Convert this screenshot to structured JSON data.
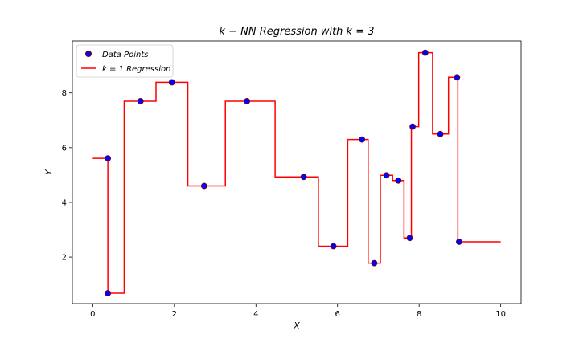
{
  "chart_data": {
    "type": "line",
    "title": "k − NN Regression with k = 3",
    "xlabel": "X",
    "ylabel": "Y",
    "xlim": [
      -0.5,
      10.5
    ],
    "ylim": [
      0.3,
      9.9
    ],
    "xticks": [
      0,
      2,
      4,
      6,
      8,
      10
    ],
    "yticks": [
      2,
      4,
      6,
      8
    ],
    "grid": false,
    "legend_position": "top-left",
    "series": [
      {
        "name": "Data Points",
        "kind": "scatter",
        "color": "#0000ff",
        "edge_color": "#7a0000",
        "x": [
          0.37,
          0.37,
          1.17,
          1.94,
          2.73,
          3.78,
          5.17,
          5.9,
          6.6,
          6.9,
          7.2,
          7.49,
          7.77,
          7.84,
          8.15,
          8.52,
          8.93,
          8.98
        ],
        "y": [
          5.61,
          0.68,
          7.7,
          8.39,
          4.6,
          7.7,
          4.93,
          2.4,
          6.3,
          1.78,
          4.99,
          4.8,
          2.7,
          6.77,
          9.47,
          6.5,
          8.57,
          2.56
        ]
      },
      {
        "name": "k = 1 Regression",
        "kind": "step",
        "color": "#ff0000",
        "x": [
          0,
          0.37,
          0.37,
          0.77,
          0.77,
          1.55,
          1.55,
          2.33,
          2.33,
          3.25,
          3.25,
          4.47,
          4.47,
          5.53,
          5.53,
          6.25,
          6.25,
          6.75,
          6.75,
          7.05,
          7.05,
          7.35,
          7.35,
          7.63,
          7.63,
          7.81,
          7.81,
          7.99,
          7.99,
          8.33,
          8.33,
          8.72,
          8.72,
          8.95,
          8.95,
          10
        ],
        "y": [
          5.61,
          5.61,
          0.68,
          0.68,
          7.7,
          7.7,
          8.39,
          8.39,
          4.6,
          4.6,
          7.7,
          7.7,
          4.93,
          4.93,
          2.4,
          2.4,
          6.3,
          6.3,
          1.78,
          1.78,
          4.99,
          4.99,
          4.8,
          4.8,
          2.7,
          2.7,
          6.77,
          6.77,
          9.47,
          9.47,
          6.5,
          6.5,
          8.57,
          8.57,
          2.56,
          2.56
        ]
      }
    ]
  }
}
